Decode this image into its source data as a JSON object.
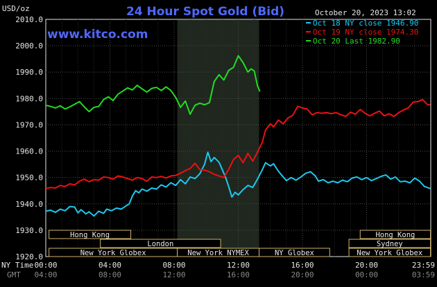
{
  "chart_data": {
    "type": "line",
    "title": "24 Hour Spot Gold (Bid)",
    "watermark": "www.kitco.com",
    "timestamp": "October 20, 2023 13:02",
    "ylabel": "USD/oz",
    "ylim": [
      1920,
      2010
    ],
    "yticks": [
      "2010.0",
      "2000.0",
      "1990.0",
      "1980.0",
      "1970.0",
      "1960.0",
      "1950.0",
      "1940.0",
      "1930.0",
      "1920.0"
    ],
    "xlim": [
      0,
      24
    ],
    "x_row_label": "NY Time",
    "x_row2_label": "GMT",
    "xticks": [
      {
        "t": 0,
        "ny": "00:00",
        "gmt": "04:00"
      },
      {
        "t": 4,
        "ny": "04:00",
        "gmt": "08:00"
      },
      {
        "t": 8,
        "ny": "08:00",
        "gmt": "12:00"
      },
      {
        "t": 12,
        "ny": "12:00",
        "gmt": "16:00"
      },
      {
        "t": 16,
        "ny": "16:00",
        "gmt": "20:00"
      },
      {
        "t": 20,
        "ny": "20:00",
        "gmt": "00:00"
      },
      {
        "t": 23.98,
        "ny": "23:59",
        "gmt": "03:59"
      }
    ],
    "highlight": {
      "from": 8.2,
      "to": 13.3
    },
    "grid": true,
    "legend_position": "top-right",
    "sessions": [
      {
        "label": "Hong Kong",
        "from": 0.2,
        "to": 5.3,
        "row": 0
      },
      {
        "label": "London",
        "from": 3.4,
        "to": 10.9,
        "row": 1
      },
      {
        "label": "New York Globex",
        "from": 0.2,
        "to": 8.2,
        "row": 2
      },
      {
        "label": "New York NYMEX",
        "from": 8.2,
        "to": 13.3,
        "row": 2
      },
      {
        "label": "NY Globex",
        "from": 13.3,
        "to": 17.7,
        "row": 2
      },
      {
        "label": "Hong Kong",
        "from": 19.6,
        "to": 23.98,
        "row": 0
      },
      {
        "label": "Sydney",
        "from": 18.9,
        "to": 23.98,
        "row": 1
      },
      {
        "label": "New York Globex",
        "from": 18.9,
        "to": 23.98,
        "row": 2
      }
    ],
    "series": [
      {
        "name": "Oct 18 NY close 1946.90",
        "color": "#1ec8f0",
        "points": [
          [
            0,
            1937.2
          ],
          [
            0.3,
            1937.6
          ],
          [
            0.6,
            1936.8
          ],
          [
            0.9,
            1938.0
          ],
          [
            1.2,
            1937.4
          ],
          [
            1.5,
            1939.0
          ],
          [
            1.8,
            1938.8
          ],
          [
            2.0,
            1936.6
          ],
          [
            2.2,
            1937.8
          ],
          [
            2.5,
            1936.2
          ],
          [
            2.7,
            1937.0
          ],
          [
            3.0,
            1935.4
          ],
          [
            3.3,
            1937.2
          ],
          [
            3.6,
            1936.4
          ],
          [
            3.8,
            1938.0
          ],
          [
            4.1,
            1937.4
          ],
          [
            4.4,
            1938.4
          ],
          [
            4.7,
            1938.0
          ],
          [
            5.0,
            1939.2
          ],
          [
            5.2,
            1940.0
          ],
          [
            5.4,
            1943.0
          ],
          [
            5.6,
            1945.0
          ],
          [
            5.8,
            1944.2
          ],
          [
            6.0,
            1945.6
          ],
          [
            6.3,
            1944.8
          ],
          [
            6.6,
            1946.0
          ],
          [
            6.9,
            1945.6
          ],
          [
            7.2,
            1947.2
          ],
          [
            7.5,
            1946.4
          ],
          [
            7.8,
            1948.0
          ],
          [
            8.1,
            1947.0
          ],
          [
            8.4,
            1949.2
          ],
          [
            8.7,
            1947.6
          ],
          [
            9.0,
            1950.2
          ],
          [
            9.3,
            1949.6
          ],
          [
            9.6,
            1951.4
          ],
          [
            9.9,
            1955.0
          ],
          [
            10.1,
            1959.6
          ],
          [
            10.3,
            1956.0
          ],
          [
            10.5,
            1957.6
          ],
          [
            10.8,
            1955.8
          ],
          [
            11.0,
            1953.0
          ],
          [
            11.2,
            1950.2
          ],
          [
            11.4,
            1946.6
          ],
          [
            11.6,
            1942.6
          ],
          [
            11.8,
            1944.4
          ],
          [
            12.0,
            1943.4
          ],
          [
            12.3,
            1945.4
          ],
          [
            12.6,
            1947.0
          ],
          [
            12.9,
            1946.2
          ],
          [
            13.2,
            1949.4
          ],
          [
            13.5,
            1953.0
          ],
          [
            13.7,
            1955.6
          ],
          [
            14.0,
            1954.4
          ],
          [
            14.2,
            1955.2
          ],
          [
            14.5,
            1952.4
          ],
          [
            14.8,
            1950.2
          ],
          [
            15.0,
            1948.8
          ],
          [
            15.3,
            1950.0
          ],
          [
            15.6,
            1949.0
          ],
          [
            15.9,
            1950.2
          ],
          [
            16.2,
            1951.6
          ],
          [
            16.5,
            1952.2
          ],
          [
            16.8,
            1950.6
          ],
          [
            17.0,
            1948.6
          ],
          [
            17.3,
            1949.2
          ],
          [
            17.6,
            1948.0
          ],
          [
            17.9,
            1948.6
          ],
          [
            18.2,
            1948.0
          ],
          [
            18.5,
            1949.0
          ],
          [
            18.8,
            1948.4
          ],
          [
            19.1,
            1949.8
          ],
          [
            19.4,
            1950.2
          ],
          [
            19.7,
            1949.2
          ],
          [
            20.0,
            1950.0
          ],
          [
            20.3,
            1948.8
          ],
          [
            20.6,
            1949.6
          ],
          [
            20.9,
            1950.4
          ],
          [
            21.2,
            1951.0
          ],
          [
            21.5,
            1949.4
          ],
          [
            21.8,
            1950.2
          ],
          [
            22.1,
            1948.4
          ],
          [
            22.4,
            1948.6
          ],
          [
            22.7,
            1948.0
          ],
          [
            23.0,
            1949.8
          ],
          [
            23.3,
            1948.6
          ],
          [
            23.6,
            1946.6
          ],
          [
            23.98,
            1945.8
          ]
        ]
      },
      {
        "name": "Oct 19 NY close 1974.30",
        "color": "#ee1010",
        "points": [
          [
            0,
            1945.8
          ],
          [
            0.3,
            1946.2
          ],
          [
            0.6,
            1946.0
          ],
          [
            0.9,
            1947.0
          ],
          [
            1.2,
            1946.6
          ],
          [
            1.5,
            1947.6
          ],
          [
            1.8,
            1947.2
          ],
          [
            2.1,
            1948.6
          ],
          [
            2.4,
            1949.4
          ],
          [
            2.7,
            1948.4
          ],
          [
            3.0,
            1949.2
          ],
          [
            3.3,
            1949.0
          ],
          [
            3.6,
            1950.2
          ],
          [
            3.9,
            1950.0
          ],
          [
            4.2,
            1949.4
          ],
          [
            4.5,
            1950.6
          ],
          [
            4.8,
            1950.2
          ],
          [
            5.1,
            1949.6
          ],
          [
            5.4,
            1949.0
          ],
          [
            5.7,
            1950.0
          ],
          [
            6.0,
            1949.6
          ],
          [
            6.3,
            1948.6
          ],
          [
            6.6,
            1950.2
          ],
          [
            6.9,
            1950.0
          ],
          [
            7.2,
            1950.4
          ],
          [
            7.5,
            1949.8
          ],
          [
            7.8,
            1950.6
          ],
          [
            8.1,
            1950.8
          ],
          [
            8.4,
            1951.6
          ],
          [
            8.7,
            1952.6
          ],
          [
            9.0,
            1953.4
          ],
          [
            9.3,
            1955.4
          ],
          [
            9.6,
            1953.0
          ],
          [
            9.9,
            1952.8
          ],
          [
            10.2,
            1952.2
          ],
          [
            10.5,
            1951.2
          ],
          [
            10.8,
            1950.6
          ],
          [
            11.1,
            1950.0
          ],
          [
            11.4,
            1953.0
          ],
          [
            11.7,
            1956.8
          ],
          [
            12.0,
            1958.4
          ],
          [
            12.3,
            1955.6
          ],
          [
            12.6,
            1959.2
          ],
          [
            12.9,
            1956.2
          ],
          [
            13.2,
            1959.6
          ],
          [
            13.5,
            1963.4
          ],
          [
            13.7,
            1968.0
          ],
          [
            14.0,
            1970.4
          ],
          [
            14.2,
            1969.2
          ],
          [
            14.5,
            1971.8
          ],
          [
            14.8,
            1970.4
          ],
          [
            15.1,
            1972.6
          ],
          [
            15.4,
            1973.6
          ],
          [
            15.7,
            1977.0
          ],
          [
            16.0,
            1976.4
          ],
          [
            16.3,
            1976.0
          ],
          [
            16.6,
            1973.8
          ],
          [
            16.9,
            1974.6
          ],
          [
            17.2,
            1974.4
          ],
          [
            17.5,
            1974.6
          ],
          [
            17.8,
            1974.2
          ],
          [
            18.1,
            1974.6
          ],
          [
            18.4,
            1973.8
          ],
          [
            18.7,
            1973.2
          ],
          [
            19.0,
            1974.8
          ],
          [
            19.3,
            1974.0
          ],
          [
            19.6,
            1975.8
          ],
          [
            19.9,
            1974.4
          ],
          [
            20.2,
            1973.4
          ],
          [
            20.5,
            1974.4
          ],
          [
            20.8,
            1975.2
          ],
          [
            21.1,
            1973.4
          ],
          [
            21.4,
            1974.2
          ],
          [
            21.7,
            1973.2
          ],
          [
            22.0,
            1974.6
          ],
          [
            22.3,
            1975.6
          ],
          [
            22.6,
            1976.4
          ],
          [
            22.9,
            1978.6
          ],
          [
            23.2,
            1978.8
          ],
          [
            23.5,
            1979.6
          ],
          [
            23.8,
            1977.6
          ],
          [
            23.98,
            1977.6
          ]
        ]
      },
      {
        "name": "Oct 20 Last 1982.90",
        "color": "#22dd22",
        "points": [
          [
            0,
            1977.4
          ],
          [
            0.3,
            1977.0
          ],
          [
            0.6,
            1976.4
          ],
          [
            0.9,
            1977.2
          ],
          [
            1.2,
            1976.0
          ],
          [
            1.5,
            1976.8
          ],
          [
            1.8,
            1977.8
          ],
          [
            2.1,
            1978.8
          ],
          [
            2.4,
            1976.8
          ],
          [
            2.7,
            1975.0
          ],
          [
            3.0,
            1976.6
          ],
          [
            3.3,
            1977.0
          ],
          [
            3.6,
            1979.6
          ],
          [
            3.9,
            1980.6
          ],
          [
            4.2,
            1979.2
          ],
          [
            4.5,
            1981.6
          ],
          [
            4.8,
            1982.8
          ],
          [
            5.1,
            1984.0
          ],
          [
            5.4,
            1983.2
          ],
          [
            5.7,
            1985.0
          ],
          [
            6.0,
            1983.6
          ],
          [
            6.3,
            1982.4
          ],
          [
            6.6,
            1983.8
          ],
          [
            6.9,
            1984.2
          ],
          [
            7.2,
            1983.0
          ],
          [
            7.5,
            1984.4
          ],
          [
            7.8,
            1983.0
          ],
          [
            8.1,
            1980.4
          ],
          [
            8.4,
            1976.6
          ],
          [
            8.7,
            1979.0
          ],
          [
            9.0,
            1974.0
          ],
          [
            9.3,
            1977.4
          ],
          [
            9.6,
            1978.2
          ],
          [
            9.9,
            1977.6
          ],
          [
            10.2,
            1978.4
          ],
          [
            10.5,
            1986.4
          ],
          [
            10.8,
            1989.0
          ],
          [
            11.1,
            1987.0
          ],
          [
            11.4,
            1990.6
          ],
          [
            11.7,
            1991.8
          ],
          [
            12.0,
            1996.2
          ],
          [
            12.3,
            1993.6
          ],
          [
            12.6,
            1990.0
          ],
          [
            12.8,
            1991.2
          ],
          [
            13.0,
            1990.4
          ],
          [
            13.2,
            1984.8
          ],
          [
            13.35,
            1982.6
          ]
        ]
      }
    ]
  }
}
